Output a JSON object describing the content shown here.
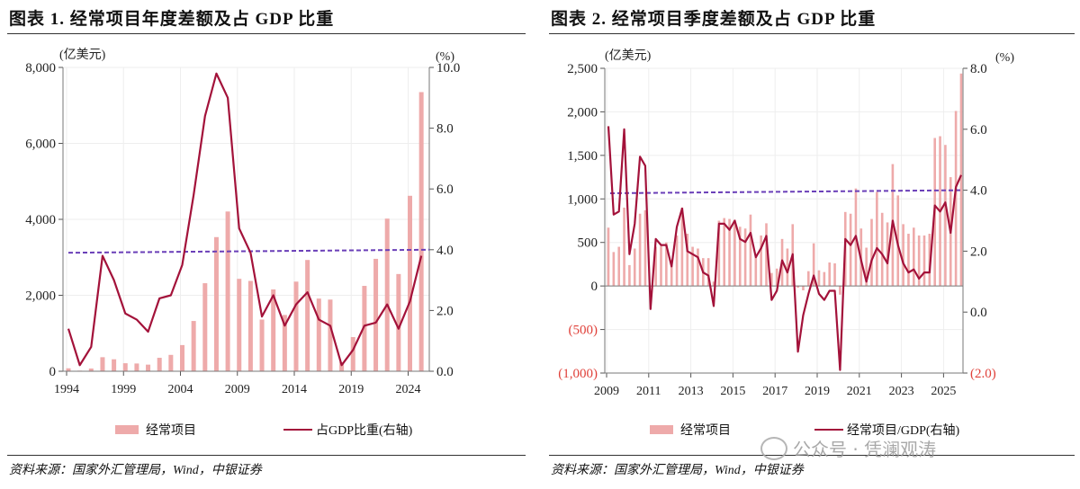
{
  "chart_data": [
    {
      "type": "bar+line",
      "title": "图表 1. 经常项目年度差额及占 GDP 比重",
      "left_unit": "(亿美元)",
      "right_unit": "(%)",
      "ylim_left": [
        0,
        8000
      ],
      "yticks_left": [
        "0",
        "2,000",
        "4,000",
        "6,000",
        "8,000"
      ],
      "ylim_right": [
        0,
        10
      ],
      "yticks_right": [
        "0.0",
        "2.0",
        "4.0",
        "6.0",
        "8.0",
        "10.0"
      ],
      "xtick_labels": [
        "1994",
        "1999",
        "2004",
        "2009",
        "2014",
        "2019",
        "2024"
      ],
      "categories": [
        1994,
        1995,
        1996,
        1997,
        1998,
        1999,
        2000,
        2001,
        2002,
        2003,
        2004,
        2005,
        2006,
        2007,
        2008,
        2009,
        2010,
        2011,
        2012,
        2013,
        2014,
        2015,
        2016,
        2017,
        2018,
        2019,
        2020,
        2021,
        2022,
        2023,
        2024,
        2025
      ],
      "series": [
        {
          "name": "经常项目",
          "type": "bar",
          "axis": "left",
          "color": "#eeaaaa",
          "values": [
            77,
            16,
            72,
            370,
            315,
            211,
            204,
            174,
            354,
            431,
            689,
            1324,
            2318,
            3532,
            4206,
            2433,
            2378,
            1361,
            2154,
            1482,
            2360,
            2930,
            1913,
            1887,
            241,
            900,
            2248,
            2960,
            4019,
            2560,
            4620,
            7350
          ]
        },
        {
          "name": "占GDP比重(右轴)",
          "type": "line",
          "axis": "right",
          "color": "#a3123a",
          "values": [
            1.4,
            0.2,
            0.8,
            3.8,
            3.0,
            1.9,
            1.7,
            1.3,
            2.4,
            2.5,
            3.5,
            5.8,
            8.4,
            9.8,
            9.0,
            4.7,
            3.9,
            1.8,
            2.5,
            1.5,
            2.2,
            2.6,
            1.7,
            1.5,
            0.2,
            0.7,
            1.5,
            1.6,
            2.2,
            1.4,
            2.3,
            3.8
          ]
        }
      ],
      "reference_line": {
        "axis": "right",
        "values": [
          3.9,
          4.0
        ],
        "color": "#6a3fb8",
        "style": "dashed"
      },
      "grid": true,
      "legend": "bottom",
      "source": "资料来源：国家外汇管理局，Wind，中银证券"
    },
    {
      "type": "bar+line",
      "title": "图表 2. 经常项目季度差额及占 GDP 比重",
      "left_unit": "(亿美元)",
      "right_unit": "(%)",
      "ylim_left": [
        -1000,
        2500
      ],
      "yticks_left": [
        "(1,000)",
        "(500)",
        "0",
        "500",
        "1,000",
        "1,500",
        "2,000",
        "2,500"
      ],
      "ylim_right": [
        -2,
        8
      ],
      "yticks_right": [
        "(2.0)",
        "0.0",
        "2.0",
        "4.0",
        "6.0",
        "8.0"
      ],
      "xtick_labels": [
        "2009",
        "2011",
        "2013",
        "2015",
        "2017",
        "2019",
        "2021",
        "2023",
        "2025"
      ],
      "series": [
        {
          "name": "经常项目",
          "type": "bar",
          "axis": "left",
          "color": "#eeaaaa",
          "values": [
            670,
            390,
            450,
            900,
            240,
            430,
            830,
            870,
            0,
            450,
            460,
            500,
            300,
            580,
            900,
            600,
            450,
            430,
            320,
            320,
            50,
            750,
            780,
            770,
            760,
            680,
            660,
            820,
            330,
            580,
            720,
            150,
            200,
            540,
            430,
            710,
            -20,
            -50,
            170,
            490,
            180,
            160,
            270,
            260,
            -100,
            850,
            830,
            1120,
            660,
            440,
            770,
            1080,
            840,
            730,
            1400,
            1040,
            710,
            600,
            670,
            580,
            580,
            600,
            1700,
            1720,
            1620,
            1250,
            2010,
            2440
          ]
        },
        {
          "name": "经常项目/GDP(右轴)",
          "type": "line",
          "axis": "right",
          "color": "#a3123a",
          "values": [
            6.1,
            3.2,
            3.3,
            6.0,
            1.9,
            2.9,
            5.1,
            4.8,
            0.1,
            2.4,
            2.2,
            2.2,
            1.5,
            2.8,
            3.4,
            2.0,
            1.9,
            1.8,
            1.3,
            1.2,
            0.2,
            2.9,
            2.9,
            2.7,
            3.0,
            2.4,
            2.3,
            2.6,
            1.8,
            2.1,
            2.5,
            0.4,
            0.7,
            1.7,
            1.3,
            1.9,
            -1.3,
            -0.1,
            0.6,
            1.2,
            0.6,
            0.4,
            0.7,
            0.7,
            -1.9,
            2.4,
            2.2,
            2.5,
            1.7,
            1.0,
            1.7,
            2.1,
            1.9,
            1.6,
            3.0,
            2.2,
            1.6,
            1.3,
            1.4,
            1.1,
            1.3,
            1.3,
            3.5,
            3.3,
            3.6,
            2.6,
            4.1,
            4.5
          ]
        }
      ],
      "reference_line": {
        "axis": "right",
        "values": [
          3.9,
          4.0
        ],
        "color": "#6a3fb8",
        "style": "dashed"
      },
      "negative_label_color": "#e0413a",
      "grid": true,
      "legend": "bottom",
      "source": "资料来源：国家外汇管理局，Wind，中银证券"
    }
  ],
  "watermark": "公众号 · 凭澜观涛"
}
